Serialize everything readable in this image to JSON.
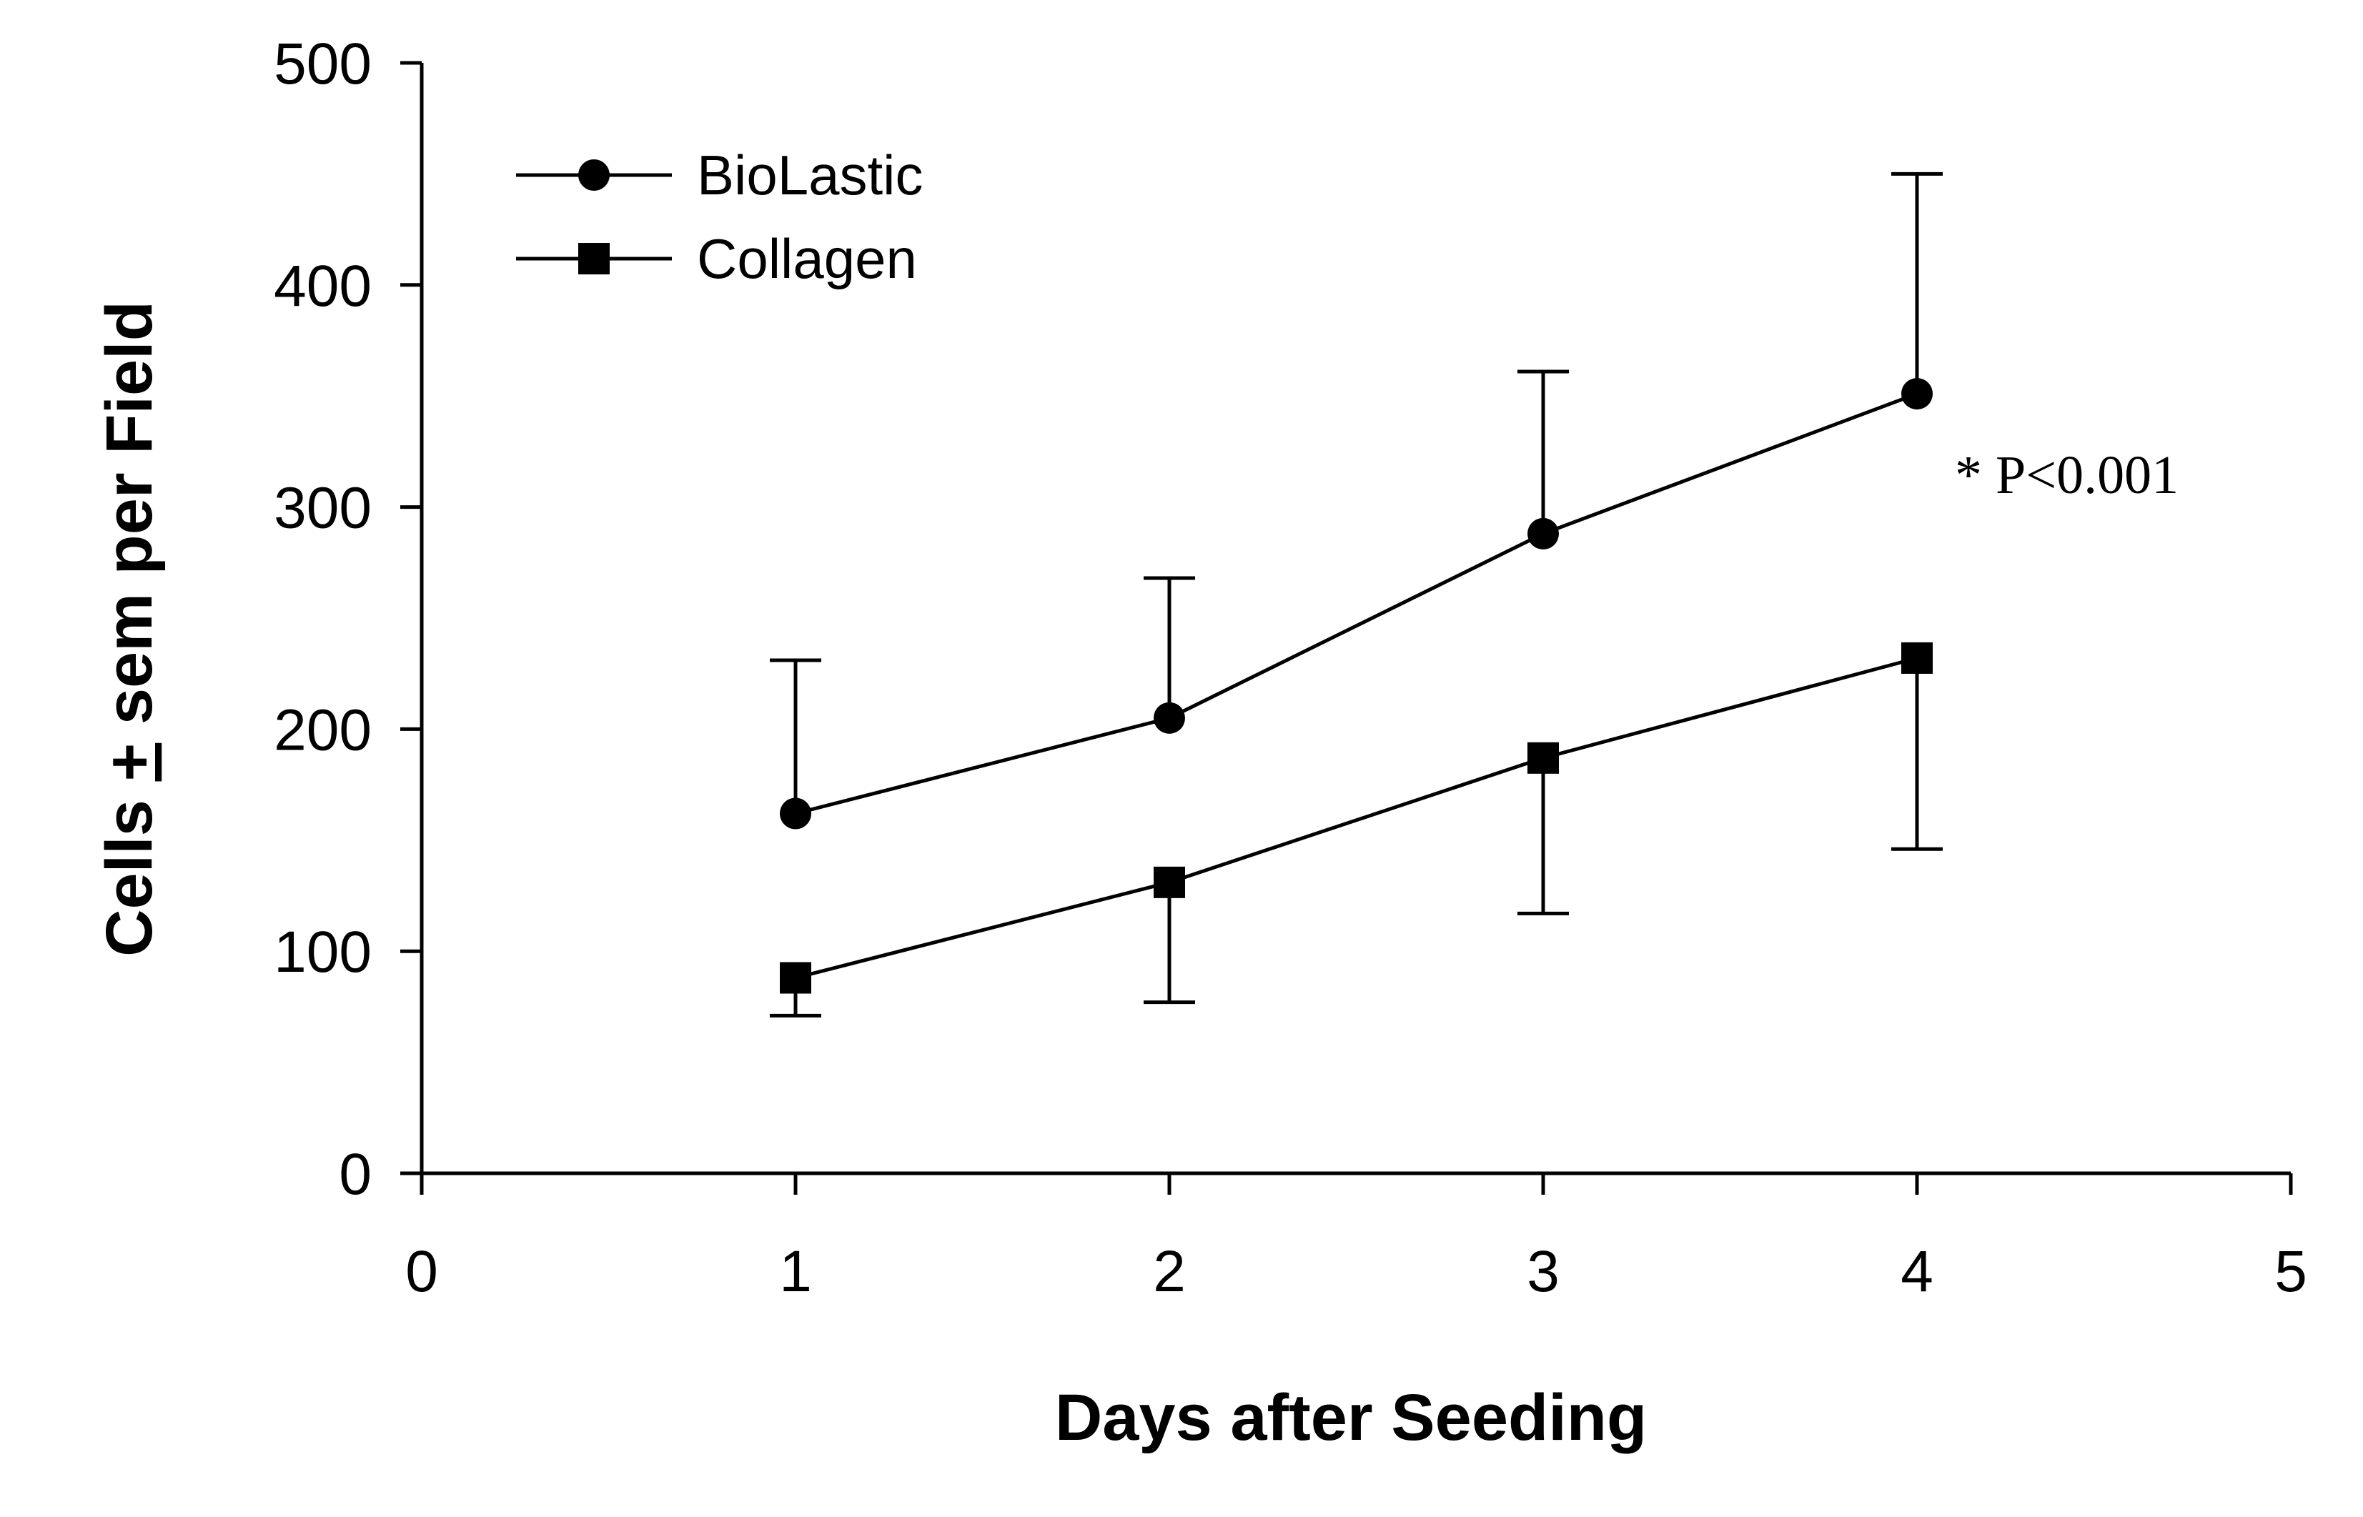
{
  "chart_data": {
    "type": "line",
    "xlabel": "Days after Seeding",
    "ylabel_parts": [
      "Cells ",
      "+",
      " sem per Field"
    ],
    "xlim": [
      0,
      5
    ],
    "ylim": [
      0,
      500
    ],
    "x_ticks": [
      0,
      1,
      2,
      3,
      4,
      5
    ],
    "y_ticks": [
      0,
      100,
      200,
      300,
      400,
      500
    ],
    "grid": false,
    "legend_position": "top-left",
    "series": [
      {
        "name": "BioLastic",
        "marker": "circle",
        "x": [
          1,
          2,
          3,
          4
        ],
        "y": [
          162,
          205,
          288,
          351
        ],
        "error_upper": [
          231,
          268,
          361,
          450
        ],
        "error_direction": "up"
      },
      {
        "name": "Collagen",
        "marker": "square",
        "x": [
          1,
          2,
          3,
          4
        ],
        "y": [
          88,
          131,
          187,
          232
        ],
        "error_lower": [
          71,
          77,
          117,
          146
        ],
        "error_direction": "down"
      }
    ],
    "annotations": [
      {
        "text": "* P<0.001"
      }
    ]
  }
}
